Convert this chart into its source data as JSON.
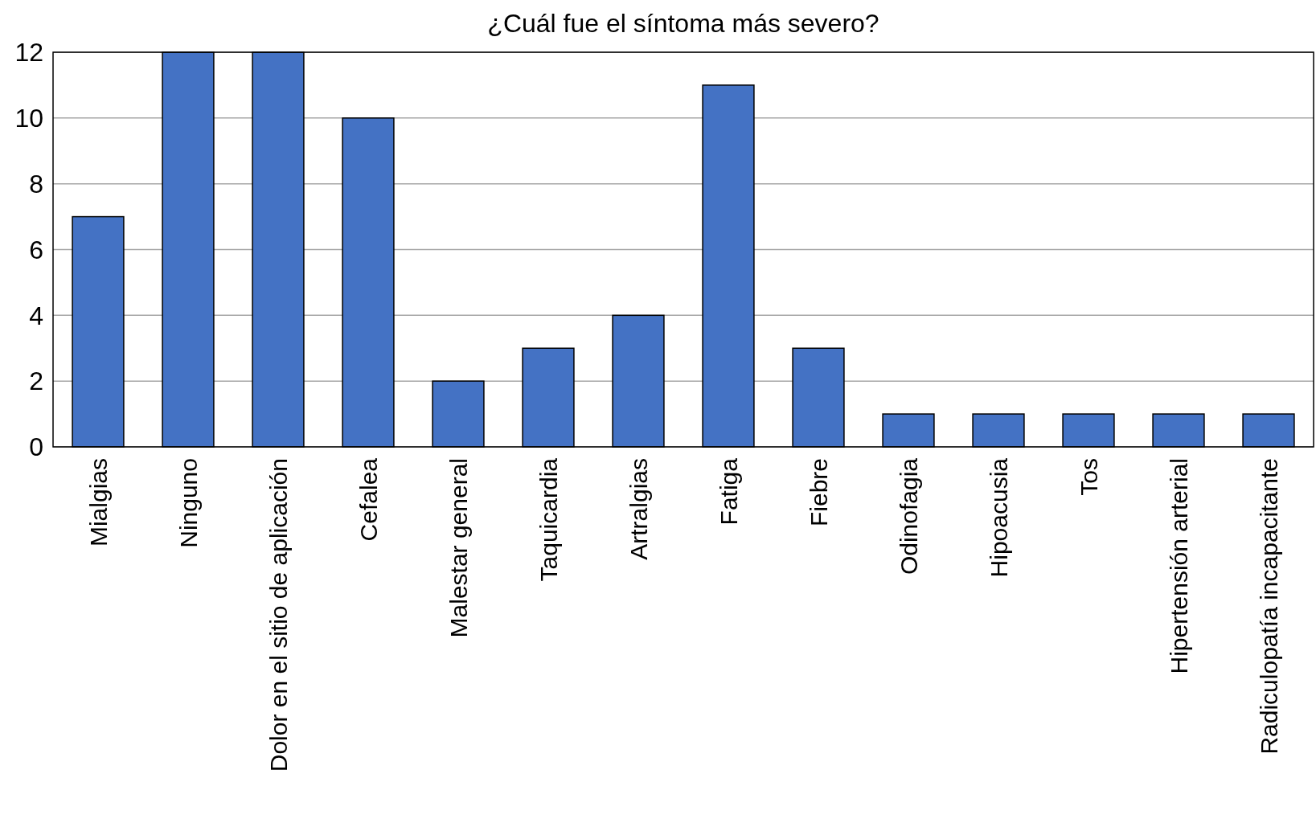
{
  "chart_data": {
    "type": "bar",
    "title": "¿Cuál fue el síntoma más severo?",
    "categories": [
      "Mialgias",
      "Ninguno",
      "Dolor en el sitio de aplicación",
      "Cefalea",
      "Malestar general",
      "Taquicardia",
      "Artralgias",
      "Fatiga",
      "Fiebre",
      "Odinofagia",
      "Hipoacusia",
      "Tos",
      "Hipertensión arterial",
      "Radiculopatía incapacitante"
    ],
    "values": [
      7,
      12,
      12,
      10,
      2,
      3,
      4,
      11,
      3,
      1,
      1,
      1,
      1,
      1
    ],
    "color": "#4472c4",
    "ylim": [
      0,
      12
    ],
    "yticks": [
      0,
      2,
      4,
      6,
      8,
      10,
      12
    ],
    "grid": "y"
  }
}
